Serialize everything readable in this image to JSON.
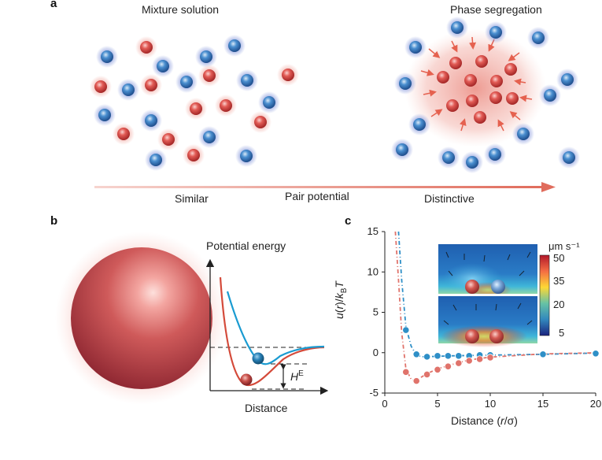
{
  "panel_a": {
    "letter": "a",
    "left_title": "Mixture solution",
    "right_title": "Phase segregation",
    "arrow_left": "Similar",
    "arrow_middle": "Pair potential",
    "arrow_right": "Distinctive"
  },
  "panel_b": {
    "letter": "b",
    "ylabel": "Potential energy",
    "xlabel": "Distance",
    "he_label_main": "H",
    "he_label_sup": "E"
  },
  "panel_c": {
    "letter": "c",
    "colorbar_unit": "μm s⁻¹",
    "colorbar_ticks": [
      "50",
      "35",
      "20",
      "5"
    ]
  },
  "colors": {
    "red_particle": "#d9534f",
    "blue_particle": "#3b7fc4",
    "teal_curve": "#1a9bd1",
    "red_curve": "#d44a3a",
    "arrow": "#e07a6a"
  },
  "chart_data": {
    "type": "scatter",
    "title": "",
    "xlabel": "Distance (r/σ)",
    "ylabel": "u(r)/kBT",
    "xlim": [
      0,
      20
    ],
    "ylim": [
      -5,
      15
    ],
    "xticks": [
      "0",
      "5",
      "10",
      "15",
      "20"
    ],
    "yticks": [
      "15",
      "10",
      "5",
      "0",
      "-5"
    ],
    "grid": false,
    "legend": "none",
    "series": [
      {
        "color": "#2e8fc7",
        "x": [
          2,
          3,
          4,
          5,
          6,
          7,
          8,
          9,
          10,
          15,
          20
        ],
        "y": [
          2.8,
          -0.2,
          -0.5,
          -0.4,
          -0.4,
          -0.4,
          -0.4,
          -0.3,
          -0.3,
          -0.2,
          -0.1
        ],
        "fit_x": [
          1.3,
          1.6,
          2.0,
          2.5,
          3.0,
          3.5,
          4,
          5,
          6,
          8,
          10,
          15,
          20
        ],
        "fit_y": [
          15,
          9,
          3.2,
          0.8,
          -0.3,
          -0.5,
          -0.5,
          -0.45,
          -0.4,
          -0.35,
          -0.3,
          -0.2,
          -0.05
        ]
      },
      {
        "color": "#e0736b",
        "x": [
          2,
          3,
          4,
          5,
          6,
          7,
          8,
          9,
          10
        ],
        "y": [
          -2.4,
          -3.5,
          -2.7,
          -2.1,
          -1.7,
          -1.3,
          -1.0,
          -0.8,
          -0.6
        ],
        "fit_x": [
          1.0,
          1.3,
          1.6,
          2.0,
          2.5,
          3.0,
          3.5,
          4,
          5,
          6,
          8,
          10,
          15,
          20
        ],
        "fit_y": [
          15,
          9,
          2.5,
          -2.0,
          -3.3,
          -3.5,
          -3.0,
          -2.6,
          -2.0,
          -1.6,
          -0.9,
          -0.55,
          -0.15,
          -0.02
        ]
      }
    ]
  }
}
